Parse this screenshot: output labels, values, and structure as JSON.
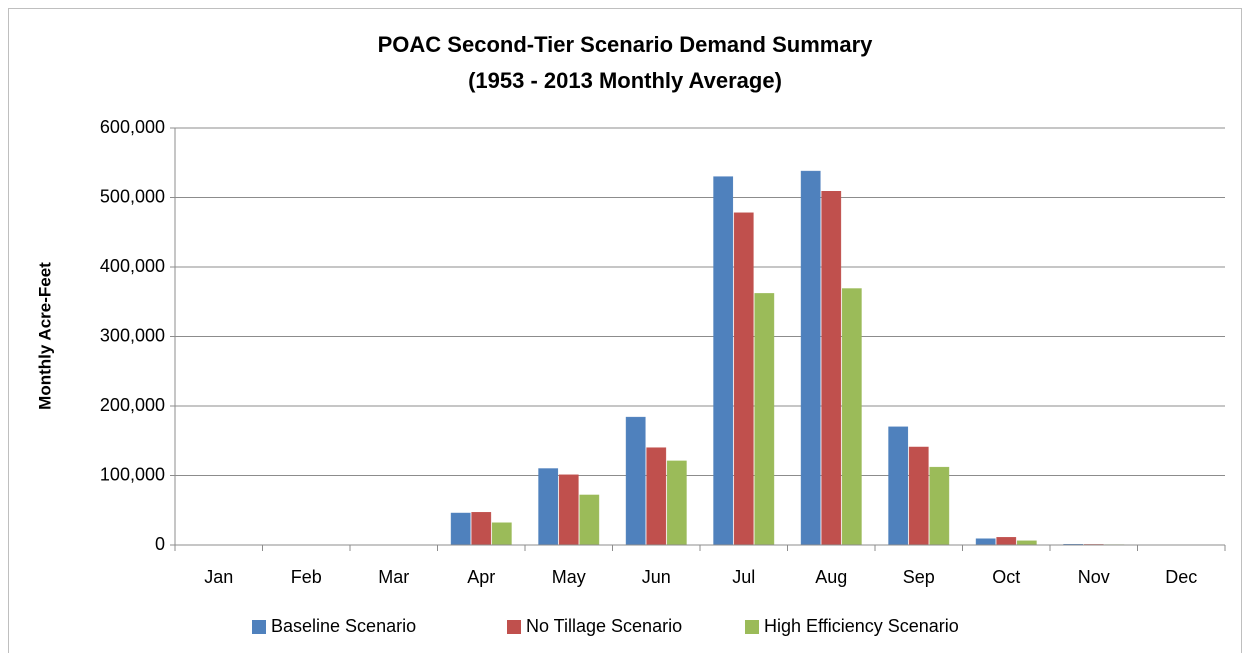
{
  "chart_data": {
    "type": "bar",
    "title": "POAC Second-Tier Scenario Demand Summary",
    "subtitle": "(1953 - 2013 Monthly Average)",
    "y_label": "Monthly Acre-Feet",
    "categories": [
      "Jan",
      "Feb",
      "Mar",
      "Apr",
      "May",
      "Jun",
      "Jul",
      "Aug",
      "Sep",
      "Oct",
      "Nov",
      "Dec"
    ],
    "series": [
      {
        "name": "Baseline Scenario",
        "color": "#4f81bd",
        "values": [
          0,
          0,
          0,
          46000,
          110000,
          184000,
          530000,
          538000,
          170000,
          9000,
          1000,
          0
        ]
      },
      {
        "name": "No Tillage Scenario",
        "color": "#c0504d",
        "values": [
          0,
          0,
          0,
          47000,
          101000,
          140000,
          478000,
          509000,
          141000,
          11000,
          800,
          0
        ]
      },
      {
        "name": "High Efficiency Scenario",
        "color": "#9bbb59",
        "values": [
          0,
          0,
          0,
          32000,
          72000,
          121000,
          362000,
          369000,
          112000,
          6000,
          500,
          0
        ]
      }
    ],
    "ylim": [
      0,
      600000
    ],
    "yticks": [
      0,
      {
        "value": 100000,
        "label": "100,000"
      },
      {
        "value": 200000,
        "label": "200,000"
      },
      {
        "value": 300000,
        "label": "300,000"
      },
      {
        "value": 400000,
        "label": "400,000"
      },
      {
        "value": 500000,
        "label": "500,000"
      },
      {
        "value": 600000,
        "label": "600,000"
      }
    ],
    "grid": true,
    "legend": "bottom"
  }
}
